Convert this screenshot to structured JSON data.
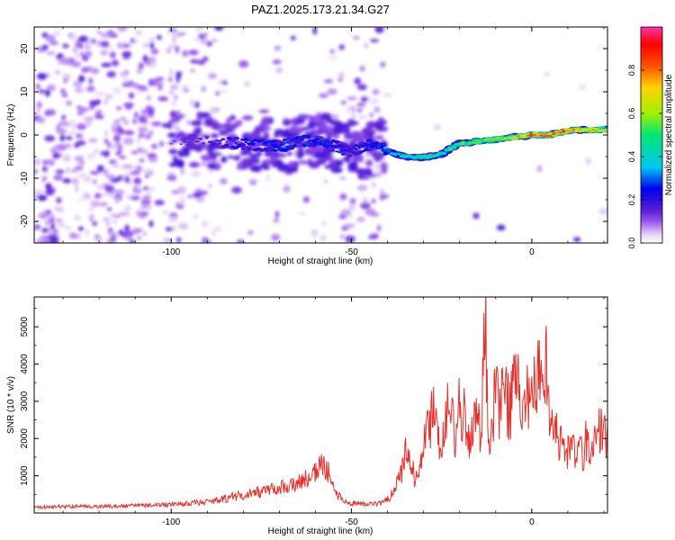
{
  "figure": {
    "title": "PAZ1.2025.173.21.34.G27"
  },
  "chart_data": [
    {
      "type": "heatmap",
      "title": "PAZ1.2025.173.21.34.G27",
      "xlabel": "Height of straight line (km)",
      "ylabel": "Frequency (Hz)",
      "xlim": [
        -138,
        21
      ],
      "ylim": [
        -25,
        25
      ],
      "x_ticks": [
        -100,
        -50,
        0
      ],
      "y_ticks": [
        -20,
        -10,
        0,
        10,
        20
      ],
      "colorbar": {
        "label": "Normalized spectral amplitude",
        "range": [
          0,
          1
        ],
        "ticks": [
          "0.0",
          "0.2",
          "0.4",
          "0.6",
          "0.8"
        ],
        "colormap": [
          "#ffffff",
          "#e6d2f5",
          "#9a55f0",
          "#5a1ed2",
          "#0000f0",
          "#00c8f0",
          "#00e673",
          "#a0f000",
          "#ffd200",
          "#ff5000",
          "#ff0000",
          "#ff32aa"
        ]
      },
      "ridge": {
        "x": [
          -100,
          -95,
          -90,
          -85,
          -80,
          -75,
          -70,
          -65,
          -60,
          -55,
          -50,
          -45,
          -40,
          -35,
          -30,
          -25,
          -20,
          -15,
          -10,
          -5,
          0,
          5,
          10,
          15,
          20
        ],
        "freq": [
          -1.0,
          -1.2,
          -1.5,
          -2.0,
          -2.0,
          -2.3,
          -2.6,
          -1.5,
          -1.7,
          -2.5,
          -4.0,
          -2.5,
          -3.8,
          -5.0,
          -5.2,
          -4.5,
          -2.0,
          -1.5,
          -1.0,
          -0.5,
          0.0,
          0.0,
          1.0,
          1.2,
          1.2
        ],
        "amplitude": [
          0.12,
          0.14,
          0.16,
          0.2,
          0.24,
          0.26,
          0.3,
          0.28,
          0.3,
          0.28,
          0.22,
          0.28,
          0.35,
          0.45,
          0.45,
          0.5,
          0.55,
          0.6,
          0.62,
          0.7,
          0.88,
          0.85,
          0.85,
          0.75,
          0.7
        ]
      }
    },
    {
      "type": "line",
      "xlabel": "Height of straight line (km)",
      "ylabel": "SNR (10 * v/v)",
      "xlim": [
        -138,
        21
      ],
      "ylim": [
        0,
        5800
      ],
      "x_ticks": [
        -100,
        -50,
        0
      ],
      "y_ticks": [
        1000,
        2000,
        3000,
        4000,
        5000
      ],
      "series": [
        {
          "color": "#e8302a",
          "x": [
            -138,
            -130,
            -120,
            -110,
            -100,
            -95,
            -90,
            -85,
            -80,
            -75,
            -70,
            -65,
            -62,
            -60,
            -58,
            -56,
            -54,
            -52,
            -50,
            -48,
            -46,
            -44,
            -42,
            -40,
            -38,
            -36,
            -35,
            -34,
            -33,
            -32,
            -31,
            -30,
            -29,
            -28,
            -27,
            -26,
            -25,
            -24,
            -23,
            -22,
            -21,
            -20,
            -19,
            -18,
            -17,
            -16,
            -15,
            -14,
            -13,
            -12,
            -11,
            -10,
            -9,
            -8,
            -7,
            -6,
            -5,
            -4,
            -3,
            -2,
            -1,
            0,
            1,
            2,
            3,
            4,
            5,
            6,
            7,
            8,
            9,
            10,
            11,
            12,
            13,
            14,
            15,
            16,
            17,
            18,
            19,
            20,
            21
          ],
          "y": [
            150,
            180,
            170,
            200,
            220,
            260,
            300,
            380,
            500,
            580,
            680,
            800,
            950,
            1100,
            1250,
            1050,
            500,
            300,
            260,
            230,
            240,
            230,
            260,
            350,
            600,
            1150,
            1650,
            1500,
            1100,
            900,
            1300,
            1700,
            2100,
            2600,
            3200,
            2200,
            1900,
            2500,
            2900,
            2400,
            2000,
            3000,
            2700,
            2200,
            1800,
            3100,
            2500,
            1800,
            5800,
            1500,
            2000,
            3900,
            2800,
            3300,
            3000,
            2700,
            3300,
            3500,
            3100,
            3600,
            3300,
            3000,
            3300,
            4000,
            3700,
            4400,
            2800,
            2000,
            2100,
            1800,
            1700,
            1600,
            1900,
            1500,
            1700,
            1500,
            1900,
            1600,
            2000,
            2200,
            2300,
            2000,
            2100
          ]
        }
      ]
    }
  ]
}
